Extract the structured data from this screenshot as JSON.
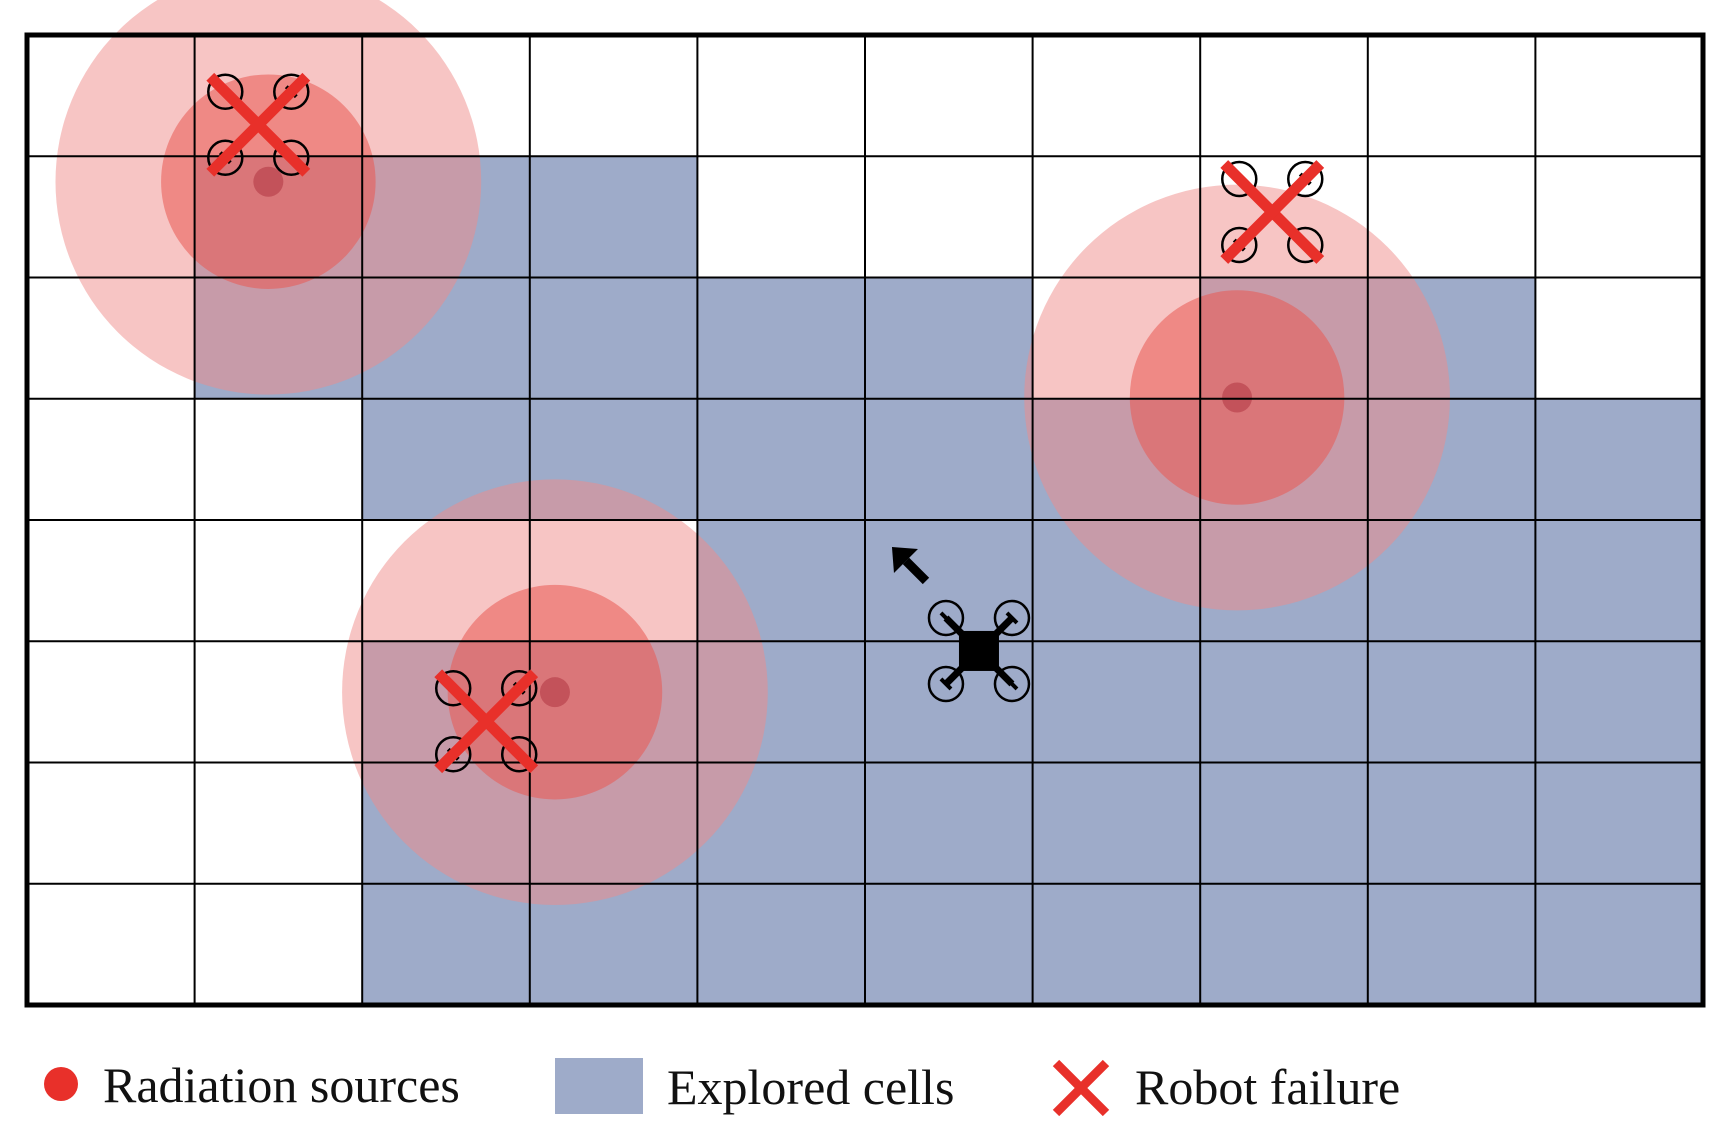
{
  "grid": {
    "cols": 10,
    "rows": 8,
    "explored": [
      [
        0,
        0,
        0,
        0,
        0,
        0,
        0,
        0,
        0,
        0
      ],
      [
        0,
        1,
        1,
        1,
        0,
        0,
        0,
        0,
        0,
        0
      ],
      [
        0,
        1,
        1,
        1,
        1,
        1,
        0,
        1,
        1,
        0
      ],
      [
        0,
        0,
        1,
        1,
        1,
        1,
        1,
        1,
        1,
        1
      ],
      [
        0,
        0,
        0,
        0,
        1,
        1,
        1,
        1,
        1,
        1
      ],
      [
        0,
        0,
        1,
        1,
        1,
        1,
        1,
        1,
        1,
        1
      ],
      [
        0,
        0,
        1,
        1,
        1,
        1,
        1,
        1,
        1,
        1
      ],
      [
        0,
        0,
        1,
        1,
        1,
        1,
        1,
        1,
        1,
        1
      ]
    ]
  },
  "radiation_sources": [
    {
      "col": 1.44,
      "row": 1.21
    },
    {
      "col": 3.15,
      "row": 5.42
    },
    {
      "col": 7.22,
      "row": 2.99
    }
  ],
  "failed_robots": [
    {
      "col": 1.38,
      "row": 0.74
    },
    {
      "col": 2.74,
      "row": 5.66
    },
    {
      "col": 7.43,
      "row": 1.46
    }
  ],
  "active_robot": {
    "col": 5.68,
    "row": 5.08
  },
  "legend": {
    "radiation": "Radiation sources",
    "explored": "Explored cells",
    "failure": "Robot failure"
  },
  "colors": {
    "explored": "#9eabc9",
    "halo_outer": "#f08c8a",
    "halo_inner": "#ea5752",
    "source_dot": "#b43a46",
    "failure": "#e8302a",
    "grid_line": "#000000"
  }
}
